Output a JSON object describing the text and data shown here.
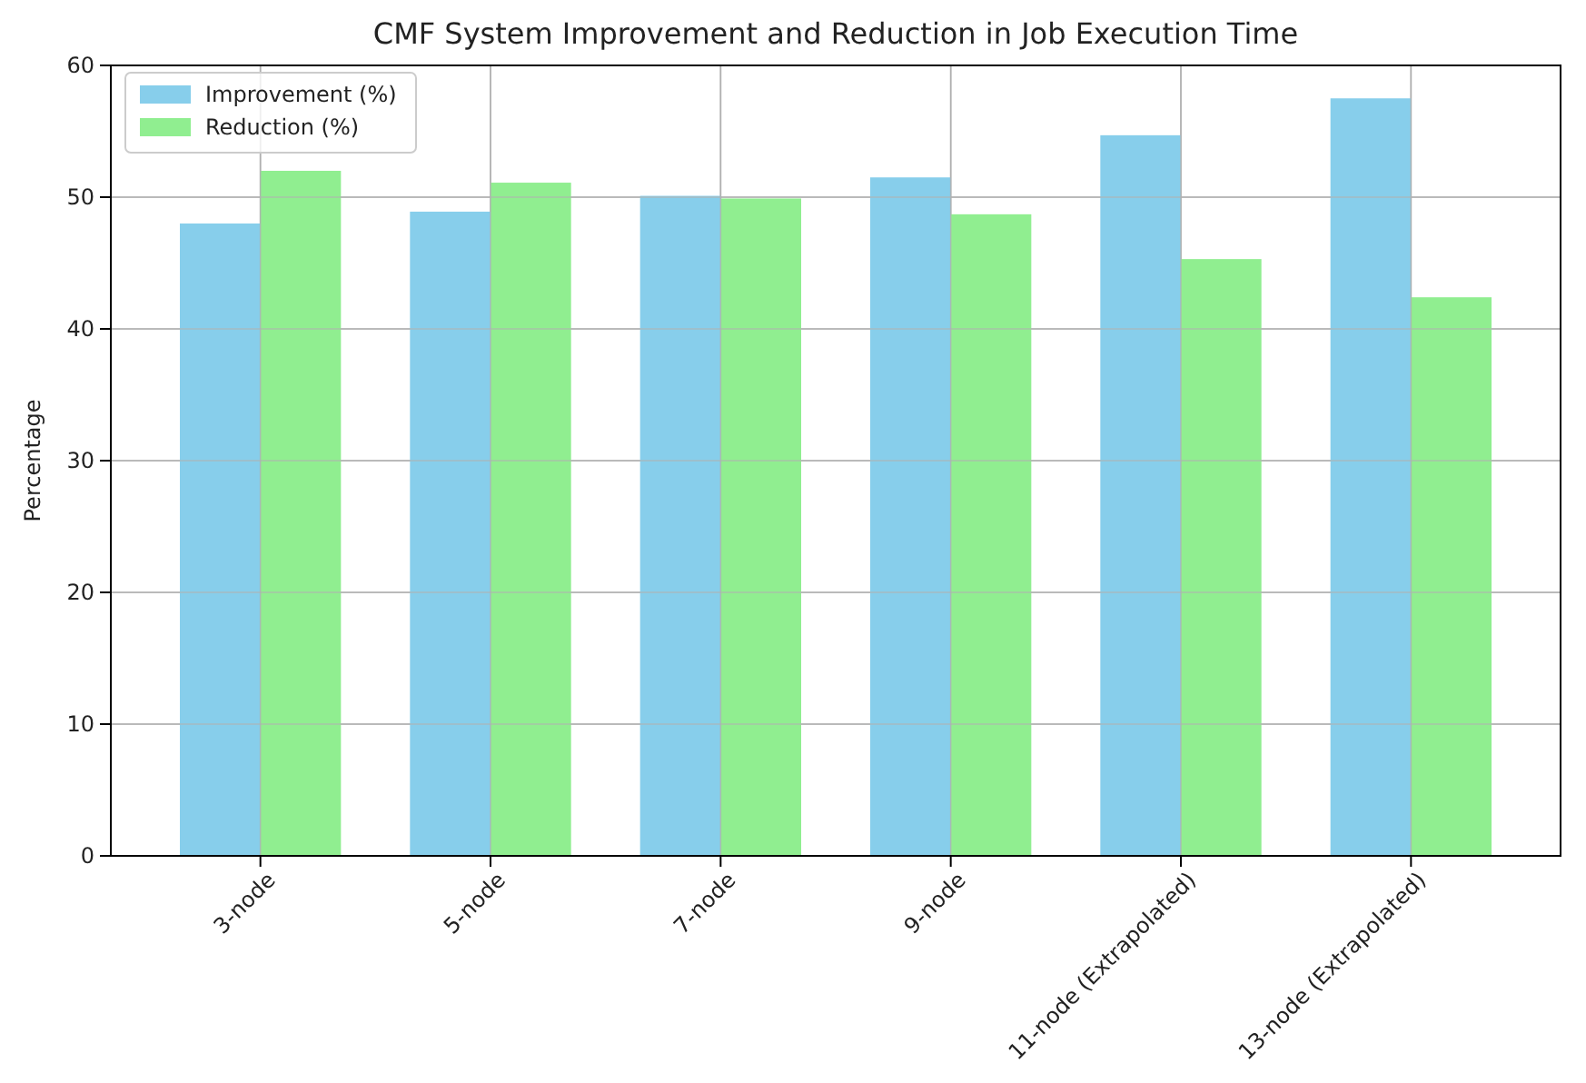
{
  "chart_data": {
    "type": "bar",
    "title": "CMF System Improvement and Reduction in Job Execution Time",
    "ylabel": "Percentage",
    "categories": [
      "3-node",
      "5-node",
      "7-node",
      "9-node",
      "11-node (Extrapolated)",
      "13-node (Extrapolated)"
    ],
    "series": [
      {
        "name": "Improvement (%)",
        "color": "#87ceeb",
        "values": [
          48.0,
          48.9,
          50.1,
          51.5,
          54.7,
          57.5
        ]
      },
      {
        "name": "Reduction (%)",
        "color": "#90ee90",
        "values": [
          52.0,
          51.1,
          49.9,
          48.7,
          45.3,
          42.4
        ]
      }
    ],
    "ylim": [
      0,
      60
    ],
    "yticks": [
      0,
      10,
      20,
      30,
      40,
      50,
      60
    ],
    "grid": true,
    "legend": "top left"
  }
}
